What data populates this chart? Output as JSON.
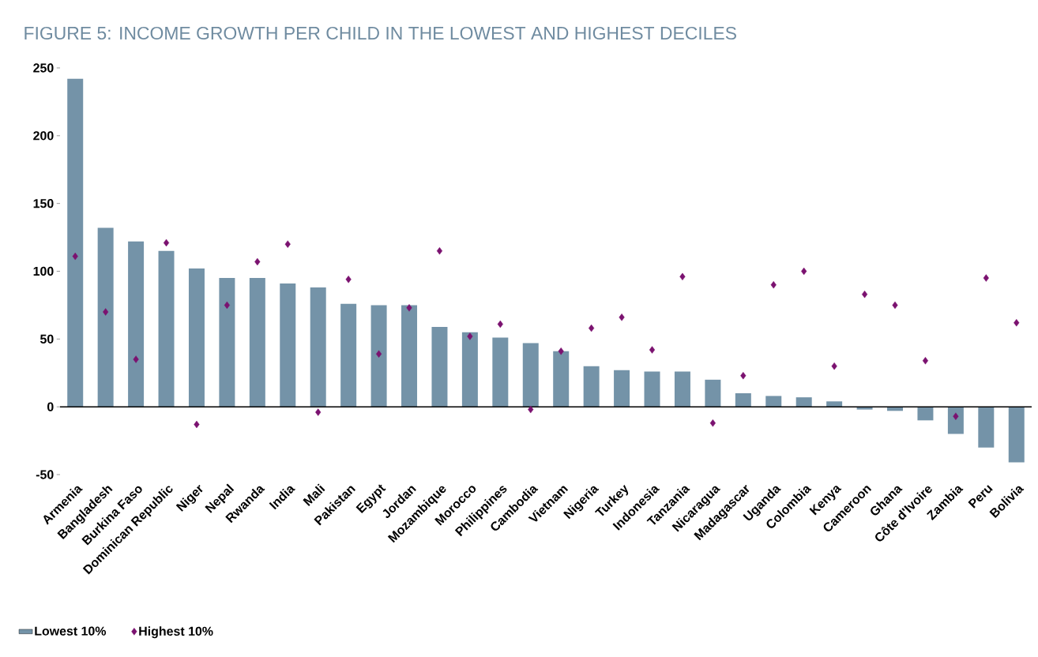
{
  "chart_data": {
    "type": "bar",
    "title": "FIGURE 5: INCOME GROWTH PER CHILD IN THE LOWEST AND HIGHEST DECILES",
    "categories": [
      "Armenia",
      "Bangladesh",
      "Burkina Faso",
      "Dominican Republic",
      "Niger",
      "Nepal",
      "Rwanda",
      "India",
      "Mali",
      "Pakistan",
      "Egypt",
      "Jordan",
      "Mozambique",
      "Morocco",
      "Philippines",
      "Cambodia",
      "Vietnam",
      "Nigeria",
      "Turkey",
      "Indonesia",
      "Tanzania",
      "Nicaragua",
      "Madagascar",
      "Uganda",
      "Colombia",
      "Kenya",
      "Cameroon",
      "Ghana",
      "Côte d'Ivoire",
      "Zambia",
      "Peru",
      "Bolivia"
    ],
    "series": [
      {
        "name": "Lowest 10%",
        "color": "#7493a8",
        "values": [
          242,
          132,
          122,
          115,
          102,
          95,
          95,
          91,
          88,
          76,
          75,
          75,
          59,
          55,
          51,
          47,
          41,
          30,
          27,
          26,
          26,
          20,
          10,
          8,
          7,
          4,
          -2,
          -3,
          -10,
          -20,
          -30,
          -41
        ]
      },
      {
        "name": "Highest 10%",
        "type": "scatter",
        "marker": "diamond",
        "color": "#7b1270",
        "values": [
          111,
          70,
          35,
          121,
          -13,
          75,
          107,
          120,
          -4,
          94,
          39,
          73,
          115,
          52,
          61,
          -2,
          41,
          58,
          66,
          42,
          96,
          -12,
          23,
          90,
          100,
          30,
          83,
          75,
          34,
          -7,
          95,
          62
        ]
      }
    ],
    "ylim": [
      -50,
      250
    ],
    "yticks": [
      -50,
      0,
      50,
      100,
      150,
      200,
      250
    ],
    "legend": "bottom left"
  }
}
